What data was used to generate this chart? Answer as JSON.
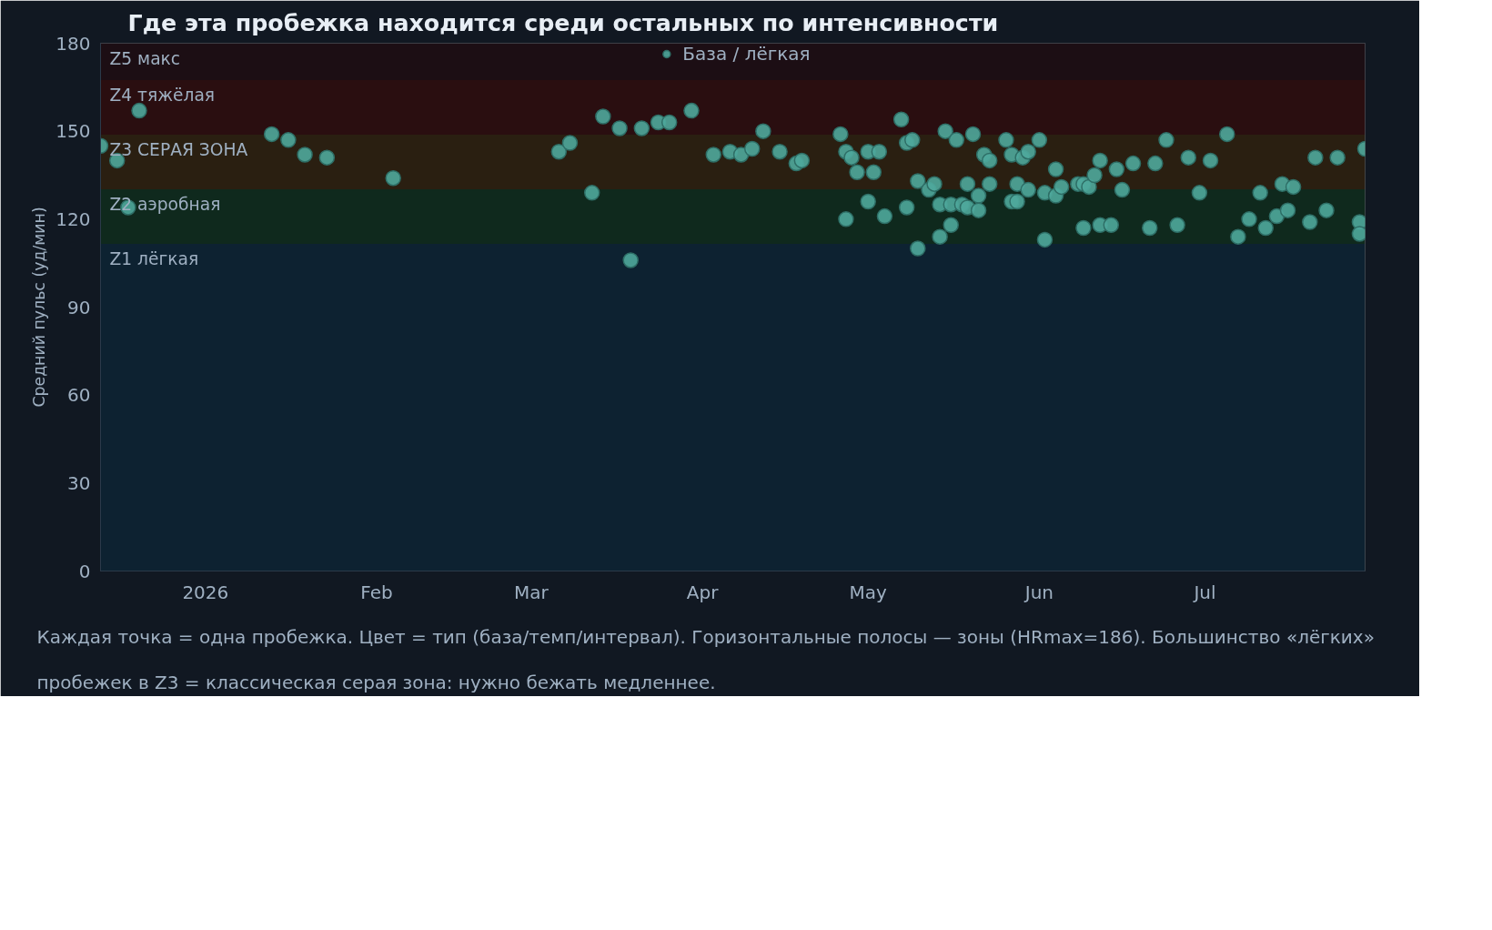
{
  "chart_data": {
    "type": "scatter",
    "title": "Где эта пробежка находится среди остальных по интенсивности",
    "ylabel": "Средний пульс (уд/мин)",
    "annotations": [
      "Каждая точка = одна пробежка. Цвет = тип (база/темп/интервал). Горизонтальные полосы — зоны (HRmax=186). Большинство «лёгких» пробежек в Z3 = классическая серая зона: нужно бежать медленнее."
    ],
    "xlim": [
      "2025-12-13",
      "2026-07-30"
    ],
    "xticks": [
      {
        "value": "2026-01-01",
        "label": "2026"
      },
      {
        "value": "2026-02-01",
        "label": "Feb"
      },
      {
        "value": "2026-03-01",
        "label": "Mar"
      },
      {
        "value": "2026-04-01",
        "label": "Apr"
      },
      {
        "value": "2026-05-01",
        "label": "May"
      },
      {
        "value": "2026-06-01",
        "label": "Jun"
      },
      {
        "value": "2026-07-01",
        "label": "Jul"
      }
    ],
    "ylim": [
      0,
      180
    ],
    "yticks": [
      0,
      30,
      60,
      90,
      120,
      150,
      180
    ],
    "grid": false,
    "legend": "top",
    "marker": "circle",
    "bands": [
      {
        "axis": "y",
        "from": 0,
        "to": 111.6,
        "label": "Z1 лёгкая",
        "color": "#0d2231"
      },
      {
        "axis": "y",
        "from": 111.6,
        "to": 130.2,
        "label": "Z2 аэробная",
        "color": "#0f291d"
      },
      {
        "axis": "y",
        "from": 130.2,
        "to": 148.8,
        "label": "Z3 СЕРАЯ ЗОНА",
        "color": "#2a1f11"
      },
      {
        "axis": "y",
        "from": 148.8,
        "to": 167.4,
        "label": "Z4 тяжёлая",
        "color": "#2a0e10"
      },
      {
        "axis": "y",
        "from": 167.4,
        "to": 180,
        "label": "Z5 макс",
        "color": "#1c0e14"
      }
    ],
    "series": [
      {
        "name": "База / лёгкая",
        "color": "#4fa89c",
        "x": [
          "2025-12-13",
          "2025-12-16",
          "2025-12-18",
          "2025-12-20",
          "2026-01-13",
          "2026-01-16",
          "2026-01-19",
          "2026-01-23",
          "2026-02-04",
          "2026-03-06",
          "2026-03-08",
          "2026-03-12",
          "2026-03-14",
          "2026-03-17",
          "2026-03-19",
          "2026-03-21",
          "2026-03-24",
          "2026-03-26",
          "2026-03-30",
          "2026-04-03",
          "2026-04-06",
          "2026-04-08",
          "2026-04-10",
          "2026-04-12",
          "2026-04-15",
          "2026-04-18",
          "2026-04-19",
          "2026-04-26",
          "2026-04-27",
          "2026-04-27",
          "2026-04-28",
          "2026-04-29",
          "2026-05-01",
          "2026-05-01",
          "2026-05-02",
          "2026-05-03",
          "2026-05-04",
          "2026-05-07",
          "2026-05-08",
          "2026-05-08",
          "2026-05-09",
          "2026-05-10",
          "2026-05-10",
          "2026-05-12",
          "2026-05-13",
          "2026-05-14",
          "2026-05-14",
          "2026-05-15",
          "2026-05-16",
          "2026-05-16",
          "2026-05-17",
          "2026-05-18",
          "2026-05-19",
          "2026-05-19",
          "2026-05-20",
          "2026-05-21",
          "2026-05-21",
          "2026-05-22",
          "2026-05-23",
          "2026-05-23",
          "2026-05-26",
          "2026-05-27",
          "2026-05-27",
          "2026-05-28",
          "2026-05-28",
          "2026-05-29",
          "2026-05-30",
          "2026-05-30",
          "2026-06-01",
          "2026-06-02",
          "2026-06-02",
          "2026-06-04",
          "2026-06-04",
          "2026-06-05",
          "2026-06-08",
          "2026-06-09",
          "2026-06-09",
          "2026-06-10",
          "2026-06-11",
          "2026-06-12",
          "2026-06-12",
          "2026-06-14",
          "2026-06-15",
          "2026-06-16",
          "2026-06-18",
          "2026-06-21",
          "2026-06-22",
          "2026-06-24",
          "2026-06-26",
          "2026-06-28",
          "2026-06-30",
          "2026-07-02",
          "2026-07-05",
          "2026-07-07",
          "2026-07-09",
          "2026-07-11",
          "2026-07-12",
          "2026-07-14",
          "2026-07-15",
          "2026-07-16",
          "2026-07-17",
          "2026-07-20",
          "2026-07-21",
          "2026-07-23",
          "2026-07-25",
          "2026-07-29",
          "2026-07-29",
          "2026-07-30"
        ],
        "values": [
          145,
          140,
          124,
          157,
          149,
          147,
          142,
          141,
          134,
          143,
          146,
          129,
          155,
          151,
          106,
          151,
          153,
          153,
          157,
          142,
          143,
          142,
          144,
          150,
          143,
          139,
          140,
          149,
          143,
          120,
          141,
          136,
          143,
          126,
          136,
          143,
          121,
          154,
          124,
          146,
          147,
          110,
          133,
          130,
          132,
          114,
          125,
          150,
          118,
          125,
          147,
          125,
          124,
          132,
          149,
          128,
          123,
          142,
          140,
          132,
          147,
          142,
          126,
          126,
          132,
          141,
          143,
          130,
          147,
          113,
          129,
          137,
          128,
          131,
          132,
          117,
          132,
          131,
          135,
          140,
          118,
          118,
          137,
          130,
          139,
          117,
          139,
          147,
          118,
          141,
          129,
          140,
          149,
          114,
          120,
          129,
          117,
          121,
          132,
          123,
          131,
          119,
          141,
          123,
          141,
          119,
          115,
          144
        ]
      }
    ]
  }
}
